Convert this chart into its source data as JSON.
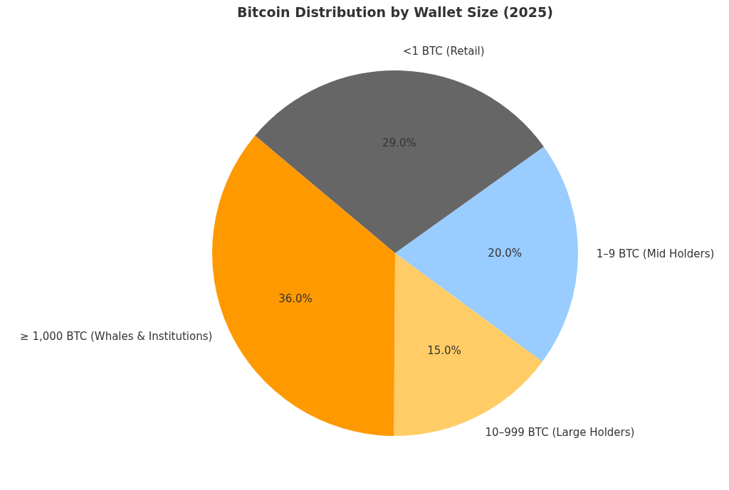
{
  "chart_data": {
    "type": "pie",
    "title": "Bitcoin Distribution by Wallet Size (2025)",
    "categories": [
      "<1 BTC (Retail)",
      "1–9 BTC (Mid Holders)",
      "10–999 BTC (Large Holders)",
      "≥ 1,000 BTC (Whales & Institutions)"
    ],
    "values": [
      29,
      20,
      15,
      36
    ],
    "colors": [
      "#666666",
      "#99ccff",
      "#ffcc66",
      "#ff9900"
    ],
    "value_labels": [
      "29.0%",
      "20.0%",
      "15.0%",
      "36.0%"
    ],
    "legend": false
  }
}
